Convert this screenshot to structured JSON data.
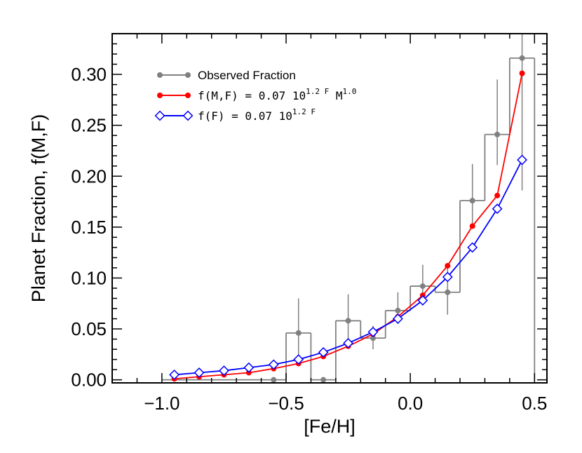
{
  "chart_data": {
    "type": "line",
    "xlabel": "[Fe/H]",
    "ylabel": "Planet Fraction, f(M,F)",
    "xlim": [
      -1.2,
      0.55
    ],
    "ylim": [
      -0.003,
      0.34
    ],
    "xticks": [
      {
        "value": -1.0,
        "label": "−1.0"
      },
      {
        "value": -0.5,
        "label": "−0.5"
      },
      {
        "value": 0.0,
        "label": "0.0"
      },
      {
        "value": 0.5,
        "label": "0.5"
      }
    ],
    "yticks": [
      {
        "value": 0.0,
        "label": "0.00"
      },
      {
        "value": 0.05,
        "label": "0.05"
      },
      {
        "value": 0.1,
        "label": "0.10"
      },
      {
        "value": 0.15,
        "label": "0.15"
      },
      {
        "value": 0.2,
        "label": "0.20"
      },
      {
        "value": 0.25,
        "label": "0.25"
      },
      {
        "value": 0.3,
        "label": "0.30"
      }
    ],
    "legend_position": "top-left",
    "colors": {
      "observed": "#808080",
      "model_mf": "#ff0000",
      "model_f": "#0000ff"
    },
    "histogram": {
      "name": "Observed Fraction",
      "bin_edges": [
        -1.0,
        -0.9,
        -0.8,
        -0.7,
        -0.6,
        -0.5,
        -0.4,
        -0.3,
        -0.2,
        -0.1,
        0.0,
        0.1,
        0.2,
        0.3,
        0.4,
        0.5
      ],
      "x": [
        -0.95,
        -0.85,
        -0.75,
        -0.65,
        -0.55,
        -0.45,
        -0.35,
        -0.25,
        -0.15,
        -0.05,
        0.05,
        0.15,
        0.25,
        0.35,
        0.45
      ],
      "values": [
        0.0,
        0.0,
        0.0,
        0.0,
        0.0,
        0.046,
        0.0,
        0.058,
        0.041,
        0.068,
        0.092,
        0.086,
        0.176,
        0.241,
        0.316
      ],
      "err_low": [
        0.0,
        0.0,
        0.0,
        0.0,
        0.0,
        0.025,
        0.0,
        0.023,
        0.011,
        0.013,
        0.018,
        0.022,
        0.025,
        0.03,
        0.13
      ],
      "err_high": [
        0.0,
        0.0,
        0.0,
        0.0,
        0.0,
        0.034,
        0.0,
        0.026,
        0.012,
        0.018,
        0.021,
        0.024,
        0.036,
        0.054,
        0.06
      ],
      "show_markers": [
        false,
        false,
        false,
        false,
        true,
        true,
        true,
        true,
        true,
        true,
        true,
        true,
        true,
        true,
        true
      ]
    },
    "series": [
      {
        "name": "f(M,F) = 0.07 10^1.2F M^1.0",
        "x": [
          -0.95,
          -0.85,
          -0.75,
          -0.65,
          -0.55,
          -0.45,
          -0.35,
          -0.25,
          -0.15,
          -0.05,
          0.05,
          0.15,
          0.25,
          0.35,
          0.45
        ],
        "values": [
          0.001,
          0.003,
          0.005,
          0.007,
          0.011,
          0.016,
          0.023,
          0.033,
          0.045,
          0.062,
          0.083,
          0.112,
          0.151,
          0.181,
          0.301
        ]
      },
      {
        "name": "f(F) = 0.07 10^1.2F",
        "x": [
          -0.95,
          -0.85,
          -0.75,
          -0.65,
          -0.55,
          -0.45,
          -0.35,
          -0.25,
          -0.15,
          -0.05,
          0.05,
          0.15,
          0.25,
          0.35,
          0.45
        ],
        "values": [
          0.005,
          0.007,
          0.009,
          0.012,
          0.015,
          0.02,
          0.027,
          0.036,
          0.047,
          0.06,
          0.078,
          0.101,
          0.13,
          0.168,
          0.216
        ]
      }
    ]
  },
  "legend": {
    "observed_label": "Observed Fraction",
    "mf_prefix": "f(M,F) = 0.07 10",
    "mf_exp1": "1.2 F",
    "mf_mid": " M",
    "mf_exp2": "1.0",
    "f_prefix": "f(F) = 0.07 10",
    "f_exp": "1.2 F"
  }
}
